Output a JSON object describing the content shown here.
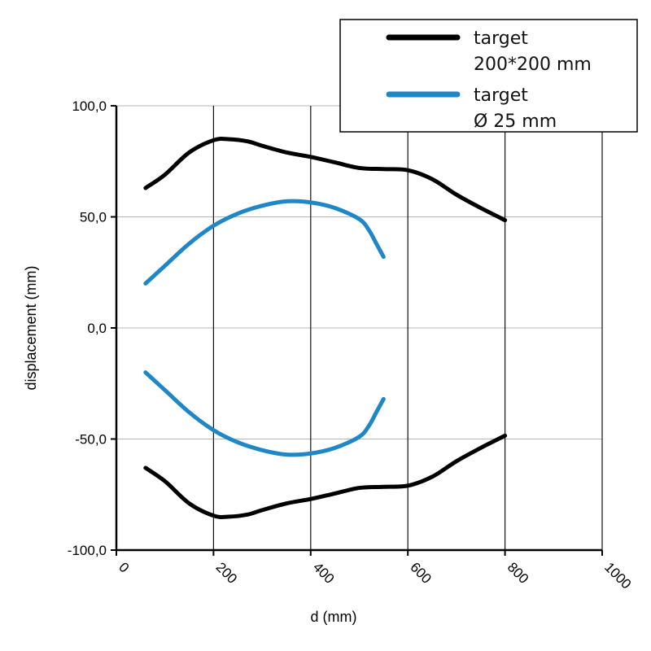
{
  "chart_data": {
    "type": "line",
    "xlabel": "d (mm)",
    "ylabel": "displacement (mm)",
    "xlim": [
      0,
      1000
    ],
    "ylim": [
      -100,
      100
    ],
    "x_ticks": [
      0,
      200,
      400,
      600,
      800,
      1000
    ],
    "x_tick_labels": [
      "0",
      "200",
      "400",
      "600",
      "800",
      "1000"
    ],
    "y_ticks": [
      -100,
      -50,
      0,
      50,
      100
    ],
    "y_tick_labels": [
      "-100,0",
      "-50,0",
      "0,0",
      "50,0",
      "100,0"
    ],
    "vertical_grid": true,
    "horizontal_grid": true,
    "legend_position": "top-right",
    "series": [
      {
        "name": "target 200*200 mm",
        "legend_lines": [
          "target",
          "200*200 mm"
        ],
        "color": "#000000",
        "x": [
          60,
          100,
          150,
          200,
          230,
          270,
          300,
          350,
          400,
          450,
          500,
          550,
          600,
          650,
          700,
          750,
          800
        ],
        "y": [
          63,
          69,
          79,
          84.5,
          85,
          84,
          82,
          79,
          77,
          74.5,
          72,
          71.5,
          71,
          67,
          60,
          54,
          48.5
        ]
      },
      {
        "name": "target 200*200 mm (lower)",
        "color": "#000000",
        "x": [
          60,
          100,
          150,
          200,
          230,
          270,
          300,
          350,
          400,
          450,
          500,
          550,
          600,
          650,
          700,
          750,
          800
        ],
        "y": [
          -63,
          -69,
          -79,
          -84.5,
          -85,
          -84,
          -82,
          -79,
          -77,
          -74.5,
          -72,
          -71.5,
          -71,
          -67,
          -60,
          -54,
          -48.5
        ]
      },
      {
        "name": "target Ø 25 mm",
        "legend_lines": [
          "target",
          "Ø 25 mm"
        ],
        "color": "#1f87c8",
        "x": [
          60,
          100,
          150,
          200,
          250,
          300,
          350,
          400,
          450,
          500,
          520,
          535,
          550
        ],
        "y": [
          20,
          28,
          38,
          46,
          51.5,
          55,
          57,
          56.5,
          54,
          49,
          44,
          38,
          32
        ]
      },
      {
        "name": "target Ø 25 mm (lower)",
        "color": "#1f87c8",
        "x": [
          60,
          100,
          150,
          200,
          250,
          300,
          350,
          400,
          450,
          500,
          520,
          535,
          550
        ],
        "y": [
          -20,
          -28,
          -38,
          -46,
          -51.5,
          -55,
          -57,
          -56.5,
          -54,
          -49,
          -44,
          -38,
          -32
        ]
      }
    ]
  }
}
